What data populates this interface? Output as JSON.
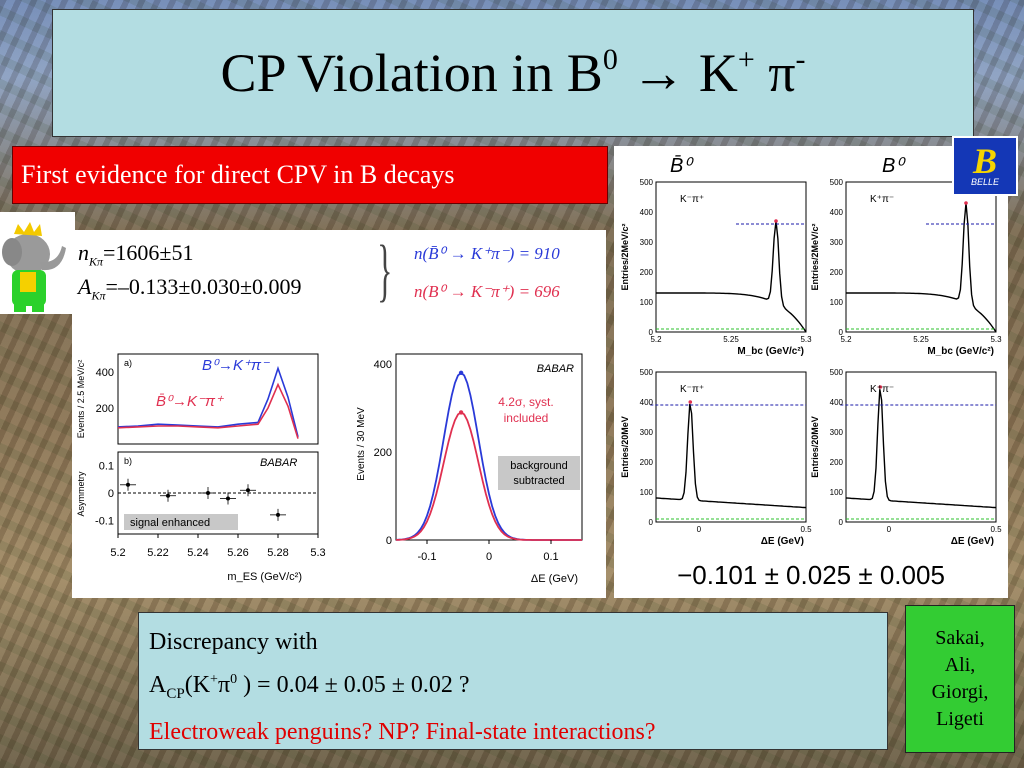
{
  "slide": {
    "title_main": "CP Violation in B",
    "title_sup0": "0",
    "title_arrow": " → K",
    "title_plus": "+",
    "title_pi": " π",
    "title_minus": "-",
    "banner": "First evidence for direct CPV in B decays",
    "discrepancy_line1": "Discrepancy with",
    "acp_prefix": "A",
    "acp_sub": "CP",
    "acp_rest_1": "(K",
    "acp_plus": "+",
    "acp_pi": "π",
    "acp_zero": "0",
    "acp_rest_2": " ) = 0.04 ± 0.05 ± 0.02 ?",
    "question_red": "Electroweak penguins? NP? Final-state interactions?",
    "authors": [
      "Sakai,",
      "Ali,",
      "Giorgi,",
      "Ligeti"
    ],
    "belle_logo_letter": "B",
    "belle_logo_text": "BELLE"
  },
  "babar_results": {
    "n_label": "n",
    "n_sub": "Kπ",
    "n_value": "=1606±51",
    "a_label": "A",
    "a_sub": "Kπ",
    "a_value": "=–0.133±0.030±0.009",
    "n_bbar0": "n(B̄⁰ → K⁺π⁻) = 910",
    "n_b0": "n(B⁰ → K⁻π⁺) = 696"
  },
  "chart_data": [
    {
      "id": "babar-mes",
      "type": "line",
      "panel_label_a": "a)",
      "panel_label_b": "b)",
      "experiment": "BABAR",
      "ylabel_top": "Events / 2.5 MeV/c²",
      "ylabel_bottom": "Asymmetry",
      "xlabel": "m_ES (GeV/c²)",
      "xlim": [
        5.2,
        5.3
      ],
      "x_ticks": [
        "5.2",
        "5.22",
        "5.24",
        "5.26",
        "5.28",
        "5.3"
      ],
      "y_ticks_top": [
        "200",
        "400"
      ],
      "y_ticks_bottom": [
        "-0.1",
        "0",
        "0.1"
      ],
      "legend": [
        "B⁰→K⁺π⁻",
        "B̄⁰→K⁻π⁺"
      ],
      "annotation": "signal enhanced",
      "series": [
        {
          "name": "B⁰→K⁺π⁻",
          "color": "#2a3ad8",
          "x": [
            5.2,
            5.21,
            5.22,
            5.23,
            5.24,
            5.25,
            5.26,
            5.27,
            5.275,
            5.28,
            5.285,
            5.29
          ],
          "y": [
            95,
            100,
            110,
            105,
            100,
            95,
            110,
            120,
            250,
            420,
            260,
            40
          ]
        },
        {
          "name": "B̄⁰→K⁻π⁺",
          "color": "#e03050",
          "x": [
            5.2,
            5.21,
            5.22,
            5.23,
            5.24,
            5.25,
            5.26,
            5.27,
            5.275,
            5.28,
            5.285,
            5.29
          ],
          "y": [
            90,
            95,
            100,
            100,
            95,
            90,
            100,
            110,
            200,
            330,
            210,
            30
          ]
        }
      ],
      "asymmetry_points": {
        "x": [
          5.205,
          5.225,
          5.245,
          5.255,
          5.265,
          5.28
        ],
        "y": [
          0.03,
          -0.01,
          0.0,
          -0.02,
          0.01,
          -0.08
        ]
      }
    },
    {
      "id": "babar-de",
      "type": "line",
      "experiment": "BABAR",
      "annotation_sigma": "4.2σ, syst.",
      "annotation_included": "included",
      "annotation_bg_1": "background",
      "annotation_bg_2": "subtracted",
      "ylabel": "Events / 30 MeV",
      "xlabel": "ΔE (GeV)",
      "xlim": [
        -0.15,
        0.15
      ],
      "ylim": [
        0,
        400
      ],
      "x_ticks": [
        "-0.1",
        "0",
        "0.1"
      ],
      "y_ticks": [
        "0",
        "200",
        "400"
      ],
      "series": [
        {
          "name": "B̄⁰→K⁻π⁺",
          "color": "#2a3ad8",
          "mean": -0.045,
          "sigma": 0.028,
          "peak": 380
        },
        {
          "name": "B⁰→K⁺π⁻",
          "color": "#e03050",
          "mean": -0.045,
          "sigma": 0.028,
          "peak": 290
        }
      ]
    },
    {
      "id": "belle-grid",
      "type": "line",
      "experiment": "BELLE",
      "column_headers": [
        "B̄⁰",
        "B⁰"
      ],
      "panels": [
        {
          "channel": "K⁻π⁺",
          "xlabel": "M_bc (GeV/c²)",
          "ylabel": "Entries/2MeV/c²",
          "xlim": [
            5.2,
            5.3
          ],
          "ylim": [
            0,
            500
          ],
          "x_ticks": [
            "5.2",
            "5.25",
            "5.3"
          ],
          "y_ticks": [
            "0",
            "100",
            "200",
            "300",
            "400",
            "500"
          ],
          "peak_x": 5.28,
          "peak_y": 370,
          "background": 130,
          "dashed_level": 360
        },
        {
          "channel": "K⁺π⁻",
          "xlabel": "M_bc (GeV/c²)",
          "ylabel": "Entries/2MeV/c²",
          "xlim": [
            5.2,
            5.3
          ],
          "ylim": [
            0,
            500
          ],
          "x_ticks": [
            "5.2",
            "5.25",
            "5.3"
          ],
          "y_ticks": [
            "0",
            "100",
            "200",
            "300",
            "400",
            "500"
          ],
          "peak_x": 5.28,
          "peak_y": 430,
          "background": 130,
          "dashed_level": 360
        },
        {
          "channel": "K⁻π⁺",
          "xlabel": "ΔE (GeV)",
          "ylabel": "Entries/20MeV",
          "xlim": [
            -0.2,
            0.5
          ],
          "ylim": [
            0,
            500
          ],
          "x_ticks": [
            "0",
            "0.5"
          ],
          "y_ticks": [
            "0",
            "100",
            "200",
            "300",
            "400",
            "500"
          ],
          "peak_x": -0.04,
          "peak_y": 400,
          "background": 80,
          "dashed_level": 390
        },
        {
          "channel": "K⁺π⁻",
          "xlabel": "ΔE (GeV)",
          "ylabel": "Entries/20MeV",
          "xlim": [
            -0.2,
            0.5
          ],
          "ylim": [
            0,
            500
          ],
          "x_ticks": [
            "0",
            "0.5"
          ],
          "y_ticks": [
            "0",
            "100",
            "200",
            "300",
            "400",
            "500"
          ],
          "peak_x": -0.04,
          "peak_y": 450,
          "background": 80,
          "dashed_level": 390
        }
      ],
      "result": "−0.101 ± 0.025 ± 0.005"
    }
  ]
}
